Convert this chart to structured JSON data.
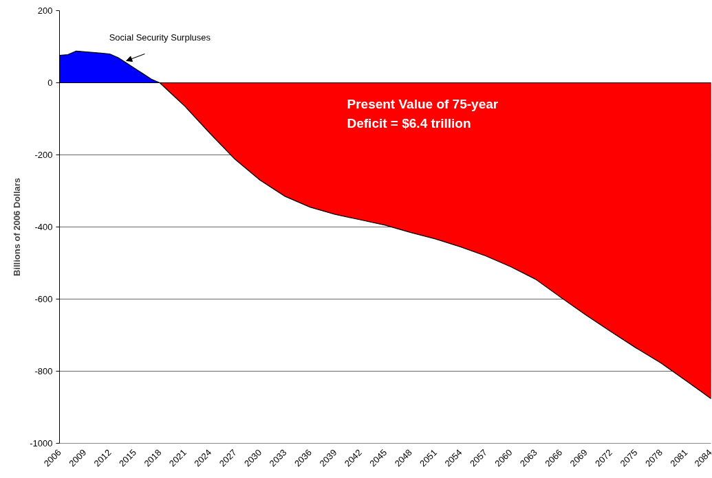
{
  "chart_data": {
    "type": "area",
    "ylabel": "Billions of 2006 Dollars",
    "xlim": [
      2006,
      2084
    ],
    "xticks": [
      2006,
      2009,
      2012,
      2015,
      2018,
      2021,
      2024,
      2027,
      2030,
      2033,
      2036,
      2039,
      2042,
      2045,
      2048,
      2051,
      2054,
      2057,
      2060,
      2063,
      2066,
      2069,
      2072,
      2075,
      2078,
      2081,
      2084
    ],
    "ylim": [
      -1000,
      200
    ],
    "yticks": [
      -1000,
      -800,
      -600,
      -400,
      -200,
      0,
      200
    ],
    "grid": "y",
    "series": [
      {
        "color": "#0000ff",
        "x": [
          2006,
          2007,
          2008,
          2009,
          2010,
          2011,
          2012,
          2013,
          2014,
          2015,
          2016,
          2017,
          2018
        ],
        "values": [
          76,
          78,
          88,
          86,
          84,
          82,
          80,
          70,
          55,
          40,
          25,
          10,
          0
        ]
      },
      {
        "color": "#ff0000",
        "x": [
          2018,
          2021,
          2024,
          2027,
          2030,
          2033,
          2036,
          2039,
          2042,
          2045,
          2048,
          2051,
          2054,
          2057,
          2060,
          2063,
          2066,
          2069,
          2072,
          2075,
          2078,
          2081,
          2084
        ],
        "values": [
          0,
          -65,
          -140,
          -212,
          -270,
          -315,
          -345,
          -365,
          -380,
          -395,
          -415,
          -433,
          -455,
          -480,
          -510,
          -545,
          -595,
          -644,
          -690,
          -735,
          -777,
          -826,
          -876
        ]
      }
    ],
    "annotations": [
      {
        "text": "Social Security Surpluses",
        "x": 2014,
        "y": 61
      },
      "Present Value of 75-year\nDeficit = $6.4 trillion"
    ]
  }
}
